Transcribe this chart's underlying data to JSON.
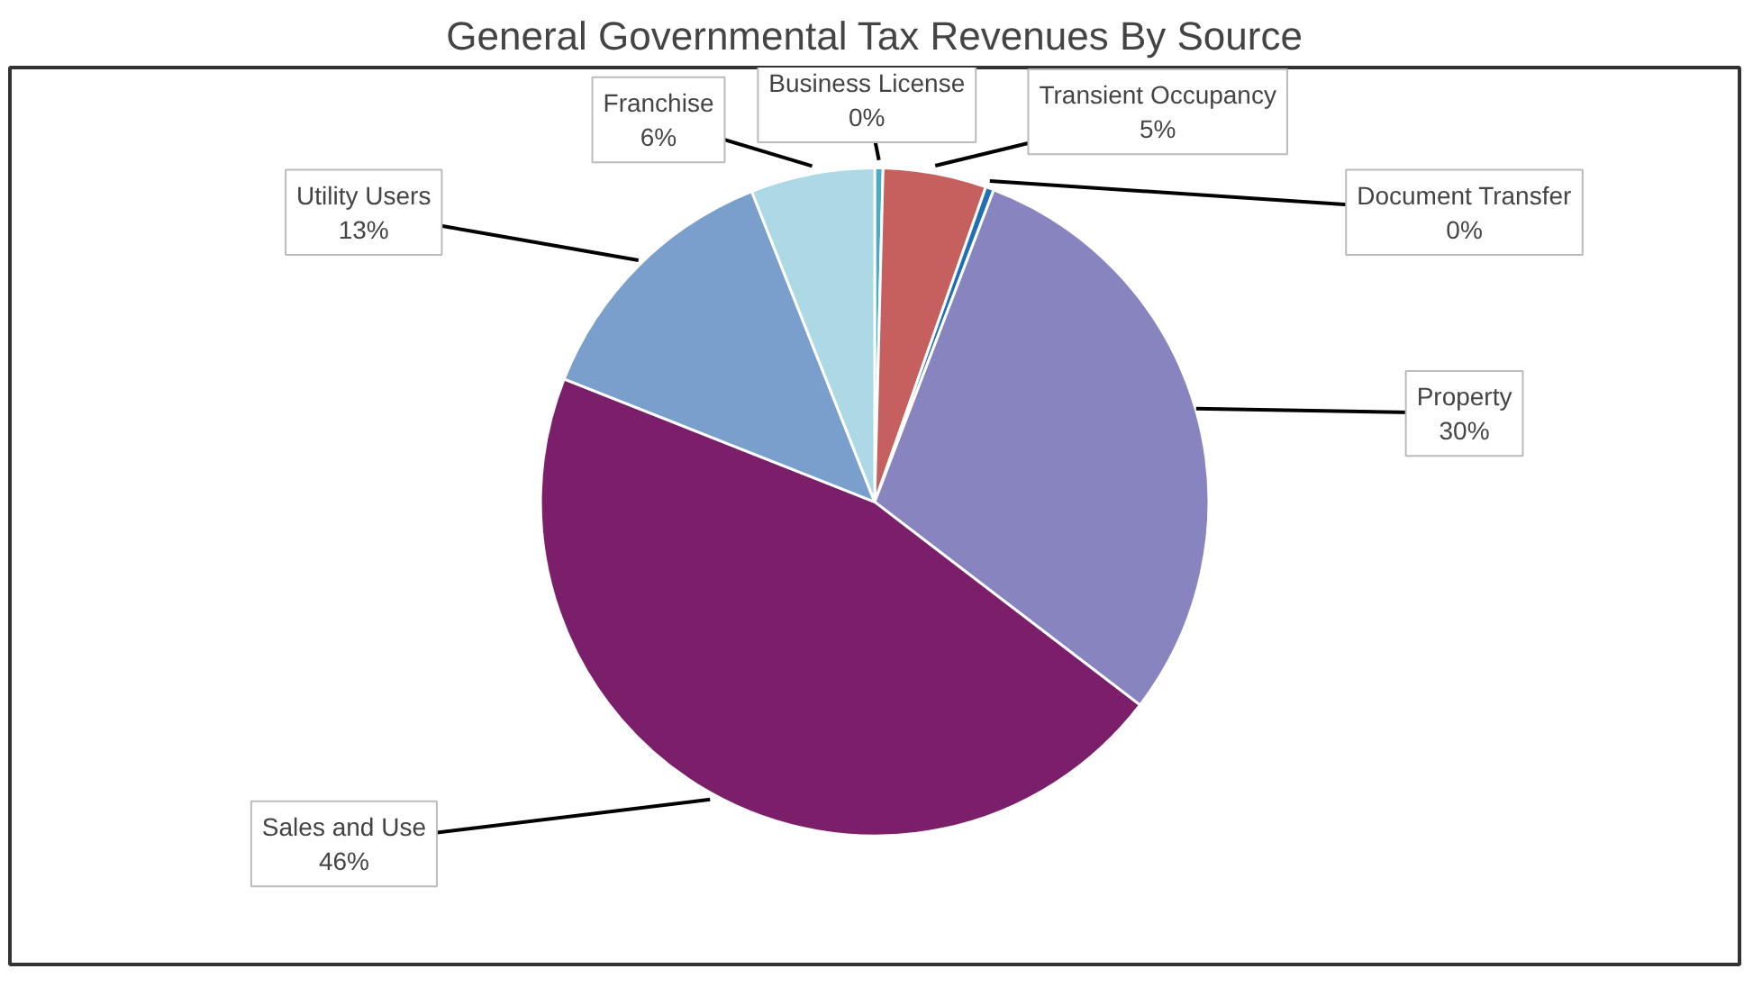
{
  "chart_data": {
    "type": "pie",
    "title": "General Governmental Tax Revenues By Source",
    "categories": [
      "Business License",
      "Transient Occupancy",
      "Document Transfer",
      "Property",
      "Sales and Use",
      "Utility Users",
      "Franchise"
    ],
    "values": [
      0.4,
      5,
      0.4,
      29.6,
      45.6,
      13,
      6
    ],
    "value_labels": [
      "0%",
      "5%",
      "0%",
      "30%",
      "46%",
      "13%",
      "6%"
    ],
    "colors": [
      "#4bacc6",
      "#c6605e",
      "#1f6fb5",
      "#8784c0",
      "#7b1f6a",
      "#7b9fcc",
      "#add8e6"
    ]
  }
}
